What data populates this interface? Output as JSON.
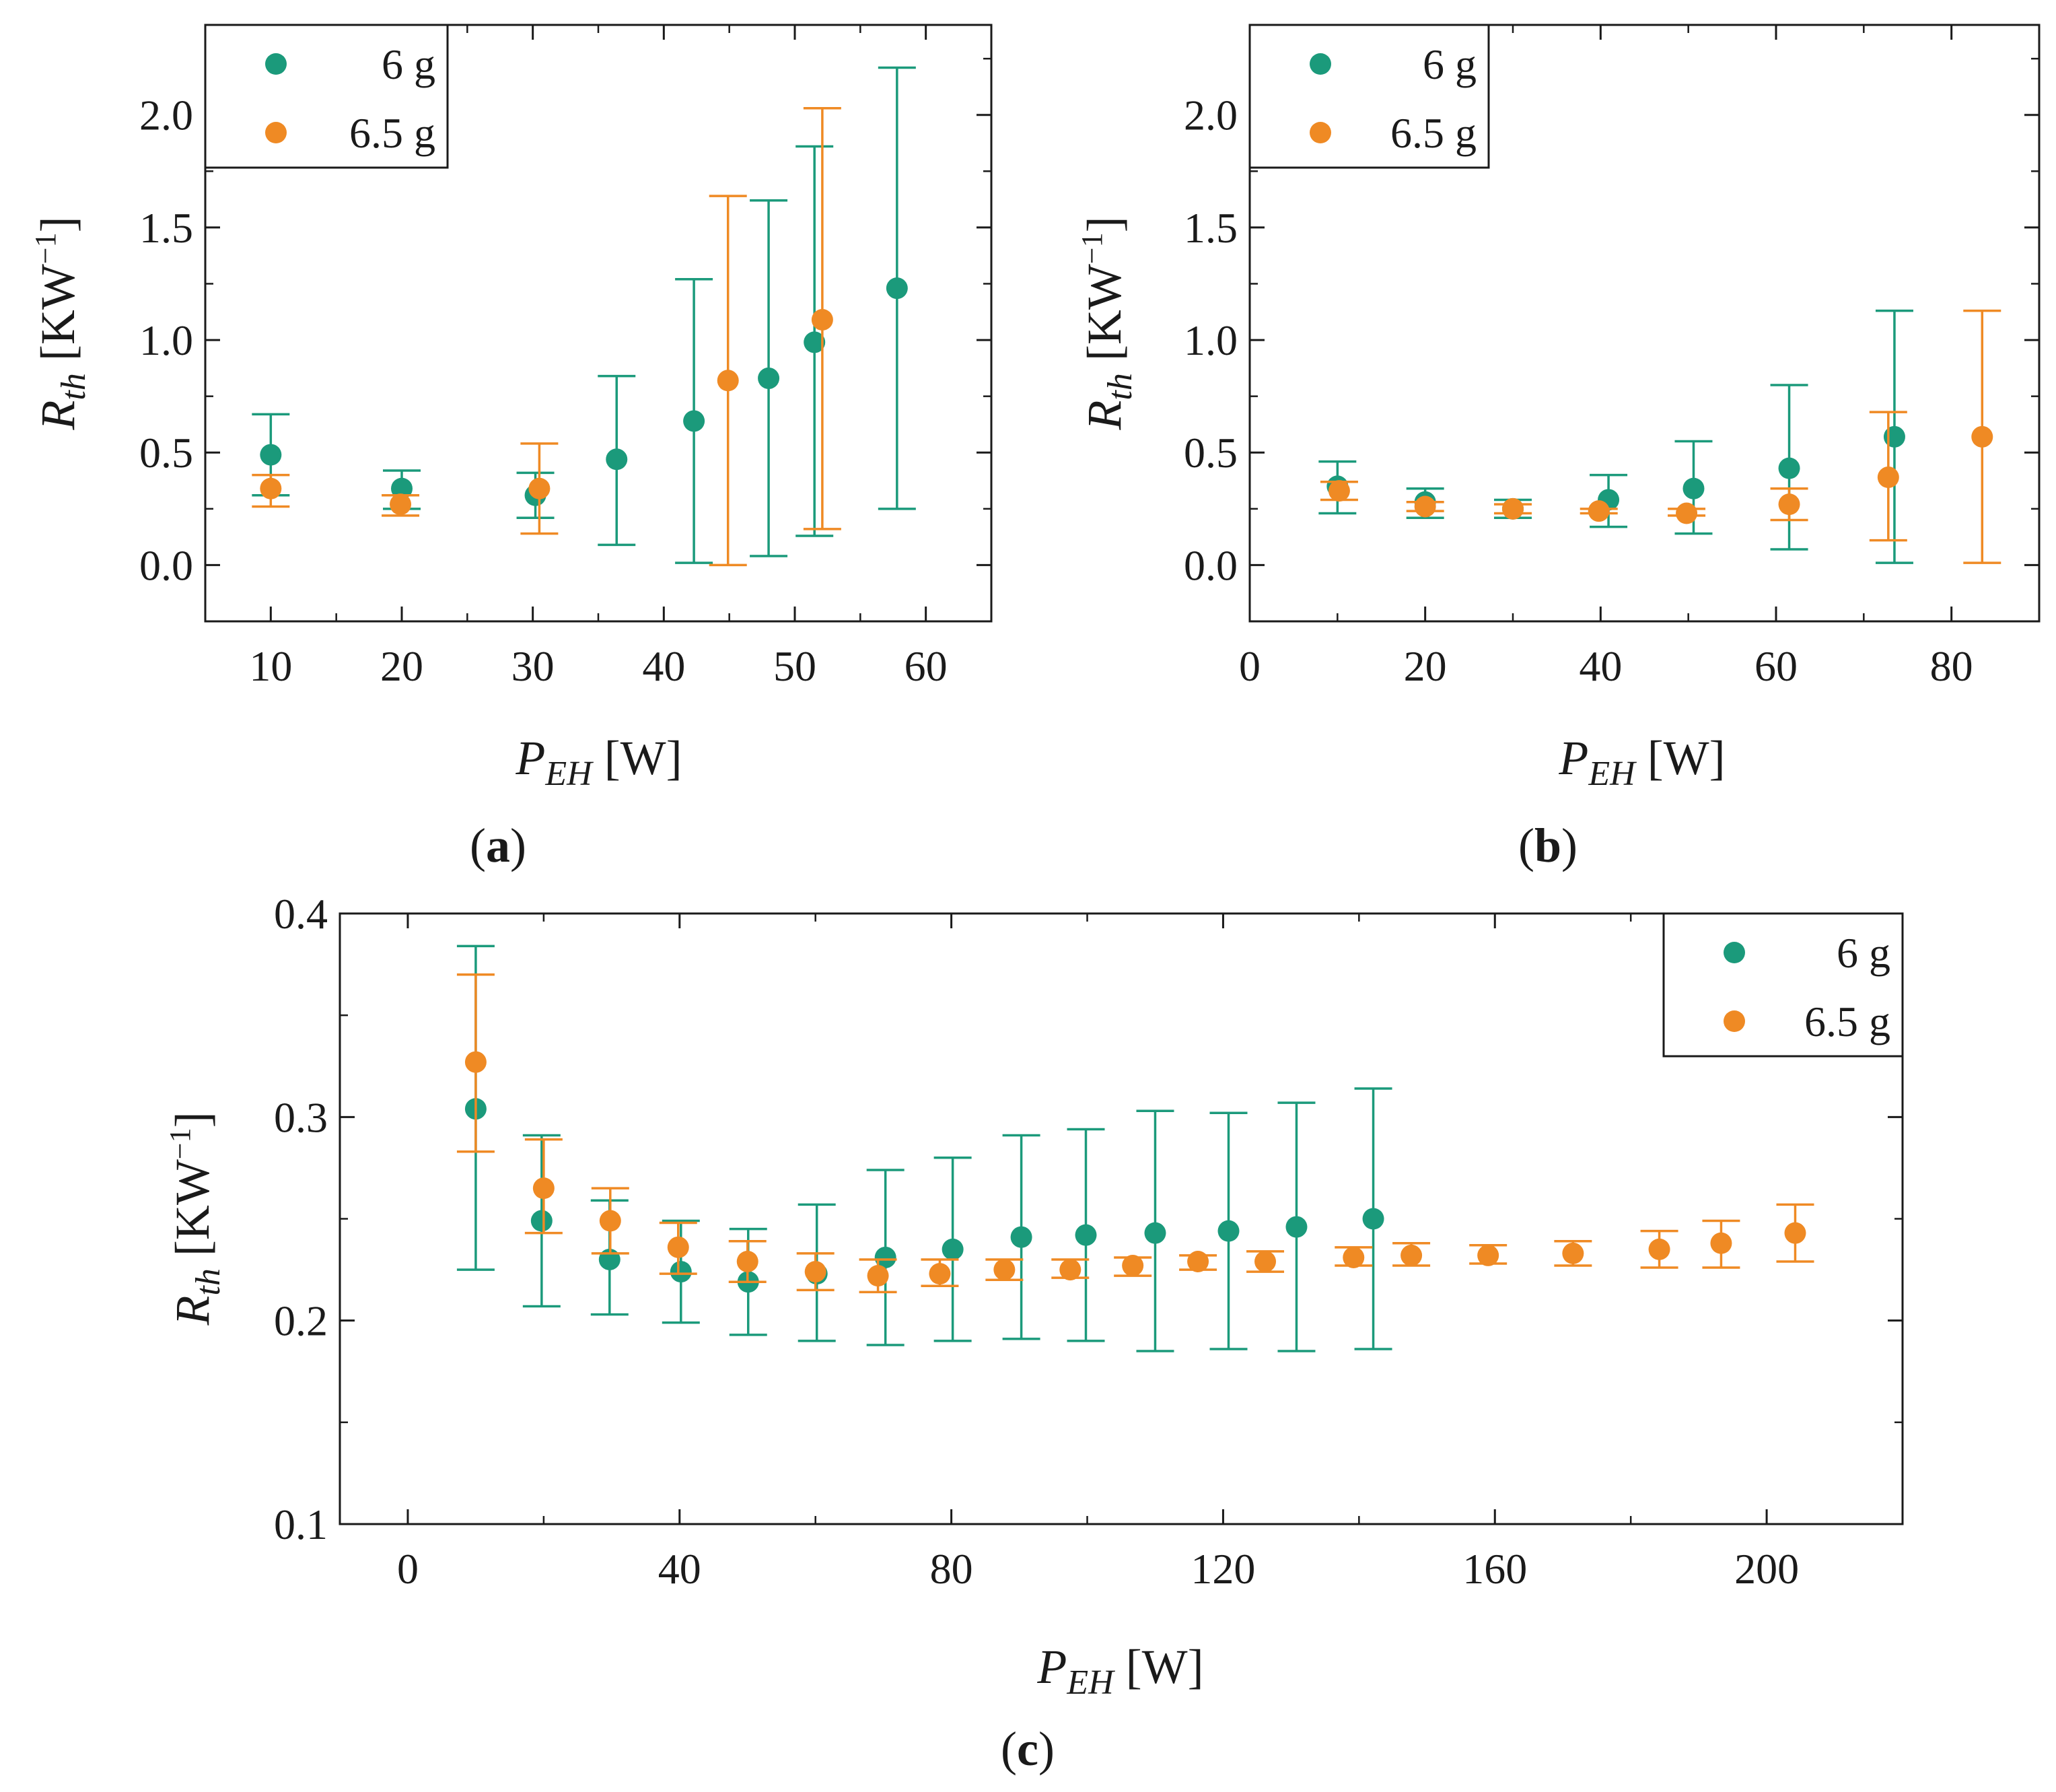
{
  "colors": {
    "six_g": "#1b9a7b",
    "six_five_g": "#ef8a24",
    "axis": "#1a1a1a"
  },
  "chart_data": [
    {
      "id": "a",
      "type": "scatter",
      "panel_label": "a",
      "xlabel": {
        "main": "P",
        "sub": "EH",
        "unit": " [W]"
      },
      "ylabel": {
        "main": "R",
        "sub": "th",
        "unit_open": " [KW",
        "unit_sup": "−1",
        "unit_close": "]"
      },
      "xlim": [
        5,
        65
      ],
      "ylim": [
        -0.25,
        2.4
      ],
      "xticks": [
        10,
        20,
        30,
        40,
        50,
        60
      ],
      "xtick_labels": [
        "10",
        "20",
        "30",
        "40",
        "50",
        "60"
      ],
      "yticks": [
        0.0,
        0.5,
        1.0,
        1.5,
        2.0
      ],
      "ytick_labels": [
        "0.0",
        "0.5",
        "1.0",
        "1.5",
        "2.0"
      ],
      "legend": {
        "placement": "top-left",
        "entries": [
          "6 g",
          "6.5 g"
        ]
      },
      "series": [
        {
          "name": "6 g",
          "color_key": "six_g",
          "points": [
            {
              "x": 10,
              "y": 0.49,
              "lo": 0.31,
              "hi": 0.67
            },
            {
              "x": 20,
              "y": 0.34,
              "lo": 0.25,
              "hi": 0.42
            },
            {
              "x": 30.2,
              "y": 0.31,
              "lo": 0.21,
              "hi": 0.41
            },
            {
              "x": 36.4,
              "y": 0.47,
              "lo": 0.09,
              "hi": 0.84
            },
            {
              "x": 42.3,
              "y": 0.64,
              "lo": 0.01,
              "hi": 1.27
            },
            {
              "x": 48,
              "y": 0.83,
              "lo": 0.04,
              "hi": 1.62
            },
            {
              "x": 51.5,
              "y": 0.99,
              "lo": 0.13,
              "hi": 1.86
            },
            {
              "x": 57.8,
              "y": 1.23,
              "lo": 0.25,
              "hi": 2.21
            }
          ]
        },
        {
          "name": "6.5 g",
          "color_key": "six_five_g",
          "points": [
            {
              "x": 10,
              "y": 0.34,
              "lo": 0.26,
              "hi": 0.4
            },
            {
              "x": 19.9,
              "y": 0.27,
              "lo": 0.22,
              "hi": 0.31
            },
            {
              "x": 30.5,
              "y": 0.34,
              "lo": 0.14,
              "hi": 0.54
            },
            {
              "x": 44.9,
              "y": 0.82,
              "lo": 0.0,
              "hi": 1.64
            },
            {
              "x": 52.1,
              "y": 1.09,
              "lo": 0.16,
              "hi": 2.03
            }
          ]
        }
      ]
    },
    {
      "id": "b",
      "type": "scatter",
      "panel_label": "b",
      "xlabel": {
        "main": "P",
        "sub": "EH",
        "unit": " [W]"
      },
      "ylabel": {
        "main": "R",
        "sub": "th",
        "unit_open": " [KW",
        "unit_sup": "−1",
        "unit_close": "]"
      },
      "xlim": [
        0,
        90
      ],
      "ylim": [
        -0.25,
        2.4
      ],
      "xticks": [
        0,
        20,
        40,
        60,
        80
      ],
      "xtick_labels": [
        "0",
        "20",
        "40",
        "60",
        "80"
      ],
      "yticks": [
        0.0,
        0.5,
        1.0,
        1.5,
        2.0
      ],
      "ytick_labels": [
        "0.0",
        "0.5",
        "1.0",
        "1.5",
        "2.0"
      ],
      "legend": {
        "placement": "top-left",
        "entries": [
          "6 g",
          "6.5 g"
        ]
      },
      "series": [
        {
          "name": "6 g",
          "color_key": "six_g",
          "points": [
            {
              "x": 10,
              "y": 0.35,
              "lo": 0.23,
              "hi": 0.46
            },
            {
              "x": 20,
              "y": 0.28,
              "lo": 0.21,
              "hi": 0.34
            },
            {
              "x": 30,
              "y": 0.25,
              "lo": 0.21,
              "hi": 0.29
            },
            {
              "x": 40.9,
              "y": 0.29,
              "lo": 0.17,
              "hi": 0.4
            },
            {
              "x": 50.6,
              "y": 0.34,
              "lo": 0.14,
              "hi": 0.55
            },
            {
              "x": 61.5,
              "y": 0.43,
              "lo": 0.07,
              "hi": 0.8
            },
            {
              "x": 73.5,
              "y": 0.57,
              "lo": 0.01,
              "hi": 1.13
            }
          ]
        },
        {
          "name": "6.5 g",
          "color_key": "six_five_g",
          "points": [
            {
              "x": 10.2,
              "y": 0.33,
              "lo": 0.29,
              "hi": 0.37
            },
            {
              "x": 20,
              "y": 0.26,
              "lo": 0.24,
              "hi": 0.28
            },
            {
              "x": 30,
              "y": 0.25,
              "lo": 0.23,
              "hi": 0.27
            },
            {
              "x": 39.8,
              "y": 0.24,
              "lo": 0.23,
              "hi": 0.25
            },
            {
              "x": 49.8,
              "y": 0.23,
              "lo": 0.22,
              "hi": 0.25
            },
            {
              "x": 61.5,
              "y": 0.27,
              "lo": 0.2,
              "hi": 0.34
            },
            {
              "x": 72.8,
              "y": 0.39,
              "lo": 0.11,
              "hi": 0.68
            },
            {
              "x": 83.5,
              "y": 0.57,
              "lo": 0.01,
              "hi": 1.13
            }
          ]
        }
      ]
    },
    {
      "id": "c",
      "type": "scatter",
      "panel_label": "c",
      "xlabel": {
        "main": "P",
        "sub": "EH",
        "unit": " [W]"
      },
      "ylabel": {
        "main": "R",
        "sub": "th",
        "unit_open": " [KW",
        "unit_sup": "−1",
        "unit_close": "]"
      },
      "xlim": [
        -10,
        220
      ],
      "ylim": [
        0.1,
        0.4
      ],
      "xticks": [
        0,
        40,
        80,
        120,
        160,
        200
      ],
      "xtick_labels": [
        "0",
        "40",
        "80",
        "120",
        "160",
        "200"
      ],
      "yticks": [
        0.1,
        0.2,
        0.3,
        0.4
      ],
      "ytick_labels": [
        "0.1",
        "0.2",
        "0.3",
        "0.4"
      ],
      "legend": {
        "placement": "top-right",
        "entries": [
          "6 g",
          "6.5 g"
        ]
      },
      "series": [
        {
          "name": "6 g",
          "color_key": "six_g",
          "points": [
            {
              "x": 10,
              "y": 0.304,
              "lo": 0.225,
              "hi": 0.384
            },
            {
              "x": 19.7,
              "y": 0.249,
              "lo": 0.207,
              "hi": 0.291
            },
            {
              "x": 29.7,
              "y": 0.23,
              "lo": 0.203,
              "hi": 0.259
            },
            {
              "x": 40.2,
              "y": 0.224,
              "lo": 0.199,
              "hi": 0.249
            },
            {
              "x": 50.1,
              "y": 0.219,
              "lo": 0.193,
              "hi": 0.245
            },
            {
              "x": 60.2,
              "y": 0.223,
              "lo": 0.19,
              "hi": 0.257
            },
            {
              "x": 70.3,
              "y": 0.231,
              "lo": 0.188,
              "hi": 0.274
            },
            {
              "x": 80.2,
              "y": 0.235,
              "lo": 0.19,
              "hi": 0.28
            },
            {
              "x": 90.3,
              "y": 0.241,
              "lo": 0.191,
              "hi": 0.291
            },
            {
              "x": 99.8,
              "y": 0.242,
              "lo": 0.19,
              "hi": 0.294
            },
            {
              "x": 110,
              "y": 0.243,
              "lo": 0.185,
              "hi": 0.303
            },
            {
              "x": 120.8,
              "y": 0.244,
              "lo": 0.186,
              "hi": 0.302
            },
            {
              "x": 130.8,
              "y": 0.246,
              "lo": 0.185,
              "hi": 0.307
            },
            {
              "x": 142.1,
              "y": 0.25,
              "lo": 0.186,
              "hi": 0.314
            }
          ]
        },
        {
          "name": "6.5 g",
          "color_key": "six_five_g",
          "points": [
            {
              "x": 10,
              "y": 0.327,
              "lo": 0.283,
              "hi": 0.37
            },
            {
              "x": 20,
              "y": 0.265,
              "lo": 0.243,
              "hi": 0.289
            },
            {
              "x": 29.8,
              "y": 0.249,
              "lo": 0.233,
              "hi": 0.265
            },
            {
              "x": 39.8,
              "y": 0.236,
              "lo": 0.223,
              "hi": 0.248
            },
            {
              "x": 50,
              "y": 0.229,
              "lo": 0.219,
              "hi": 0.239
            },
            {
              "x": 60,
              "y": 0.224,
              "lo": 0.215,
              "hi": 0.233
            },
            {
              "x": 69.2,
              "y": 0.222,
              "lo": 0.214,
              "hi": 0.23
            },
            {
              "x": 78.3,
              "y": 0.223,
              "lo": 0.217,
              "hi": 0.23
            },
            {
              "x": 87.8,
              "y": 0.225,
              "lo": 0.22,
              "hi": 0.23
            },
            {
              "x": 97.5,
              "y": 0.225,
              "lo": 0.221,
              "hi": 0.23
            },
            {
              "x": 106.7,
              "y": 0.227,
              "lo": 0.222,
              "hi": 0.231
            },
            {
              "x": 116.3,
              "y": 0.229,
              "lo": 0.225,
              "hi": 0.232
            },
            {
              "x": 126.2,
              "y": 0.229,
              "lo": 0.224,
              "hi": 0.234
            },
            {
              "x": 139.2,
              "y": 0.231,
              "lo": 0.227,
              "hi": 0.236
            },
            {
              "x": 147.7,
              "y": 0.232,
              "lo": 0.227,
              "hi": 0.238
            },
            {
              "x": 159,
              "y": 0.232,
              "lo": 0.228,
              "hi": 0.237
            },
            {
              "x": 171.5,
              "y": 0.233,
              "lo": 0.227,
              "hi": 0.239
            },
            {
              "x": 184.2,
              "y": 0.235,
              "lo": 0.226,
              "hi": 0.244
            },
            {
              "x": 193.3,
              "y": 0.238,
              "lo": 0.226,
              "hi": 0.249
            },
            {
              "x": 204.2,
              "y": 0.243,
              "lo": 0.229,
              "hi": 0.257
            }
          ]
        }
      ]
    }
  ]
}
